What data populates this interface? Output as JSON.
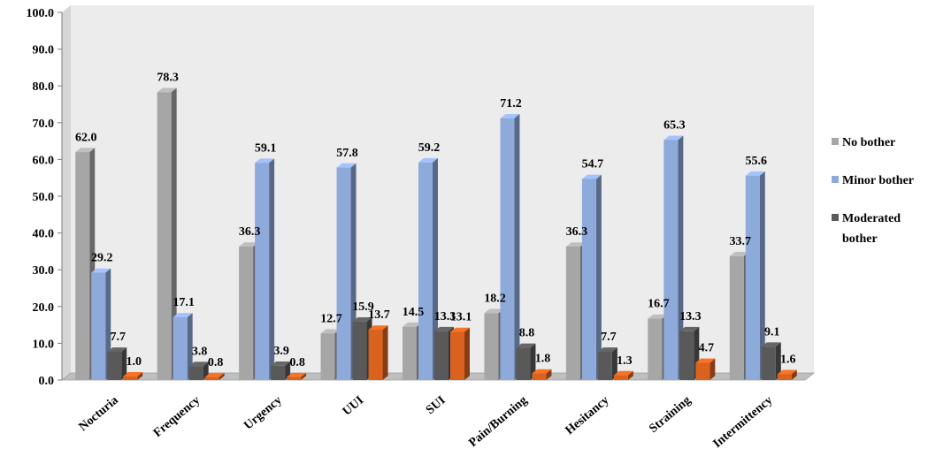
{
  "chart_data": {
    "type": "bar",
    "categories": [
      "Nocturia",
      "Frequency",
      "Urgency",
      "UUI",
      "SUI",
      "Pain/Burning",
      "Hesitancy",
      "Straining",
      "Intermittency"
    ],
    "series": [
      {
        "name": "No bother",
        "color": "#a6a6a6",
        "values": [
          62.0,
          78.3,
          36.3,
          12.7,
          14.5,
          18.2,
          36.3,
          16.7,
          33.7
        ],
        "labels": [
          "62.0",
          "78.3",
          "36.3",
          "12.7",
          "14.5",
          "18.2",
          "36.3",
          "16.7",
          "33.7"
        ]
      },
      {
        "name": "Minor bother",
        "color": "#8eaadb",
        "values": [
          29.2,
          17.1,
          59.1,
          57.8,
          59.2,
          71.2,
          54.7,
          65.3,
          55.6
        ],
        "labels": [
          "29.2",
          "17.1",
          "59.1",
          "57.8",
          "59.2",
          "71.2",
          "54.7",
          "65.3",
          "55.6"
        ]
      },
      {
        "name": "Moderated bother",
        "color": "#595959",
        "values": [
          7.7,
          3.8,
          3.9,
          15.9,
          13.3,
          8.8,
          7.7,
          13.3,
          9.1
        ],
        "labels": [
          "7.7",
          "3.8",
          "3.9",
          "15.9",
          "13.3",
          "8.8",
          "7.7",
          "13.3",
          "9.1"
        ]
      },
      {
        "name": "",
        "color": "#d9631e",
        "values": [
          1.0,
          0.8,
          0.8,
          13.7,
          13.1,
          1.8,
          1.3,
          4.7,
          1.6
        ],
        "labels": [
          "1.0",
          "0.8",
          "0.8",
          "13.7",
          "13.1",
          "1.8",
          "1.3",
          "4.7",
          "1.6"
        ]
      }
    ],
    "yticks": [
      "0.0",
      "10.0",
      "20.0",
      "30.0",
      "40.0",
      "50.0",
      "60.0",
      "70.0",
      "80.0",
      "90.0",
      "100.0"
    ],
    "ylim": [
      0,
      100
    ],
    "legend": {
      "placement": "right",
      "entries": [
        {
          "series": 0,
          "lines": [
            "No bother"
          ]
        },
        {
          "series": 1,
          "lines": [
            "Minor bother"
          ]
        },
        {
          "series": 2,
          "lines": [
            "Moderated",
            "bother"
          ]
        }
      ]
    },
    "style": "3d-column",
    "grid": false
  }
}
